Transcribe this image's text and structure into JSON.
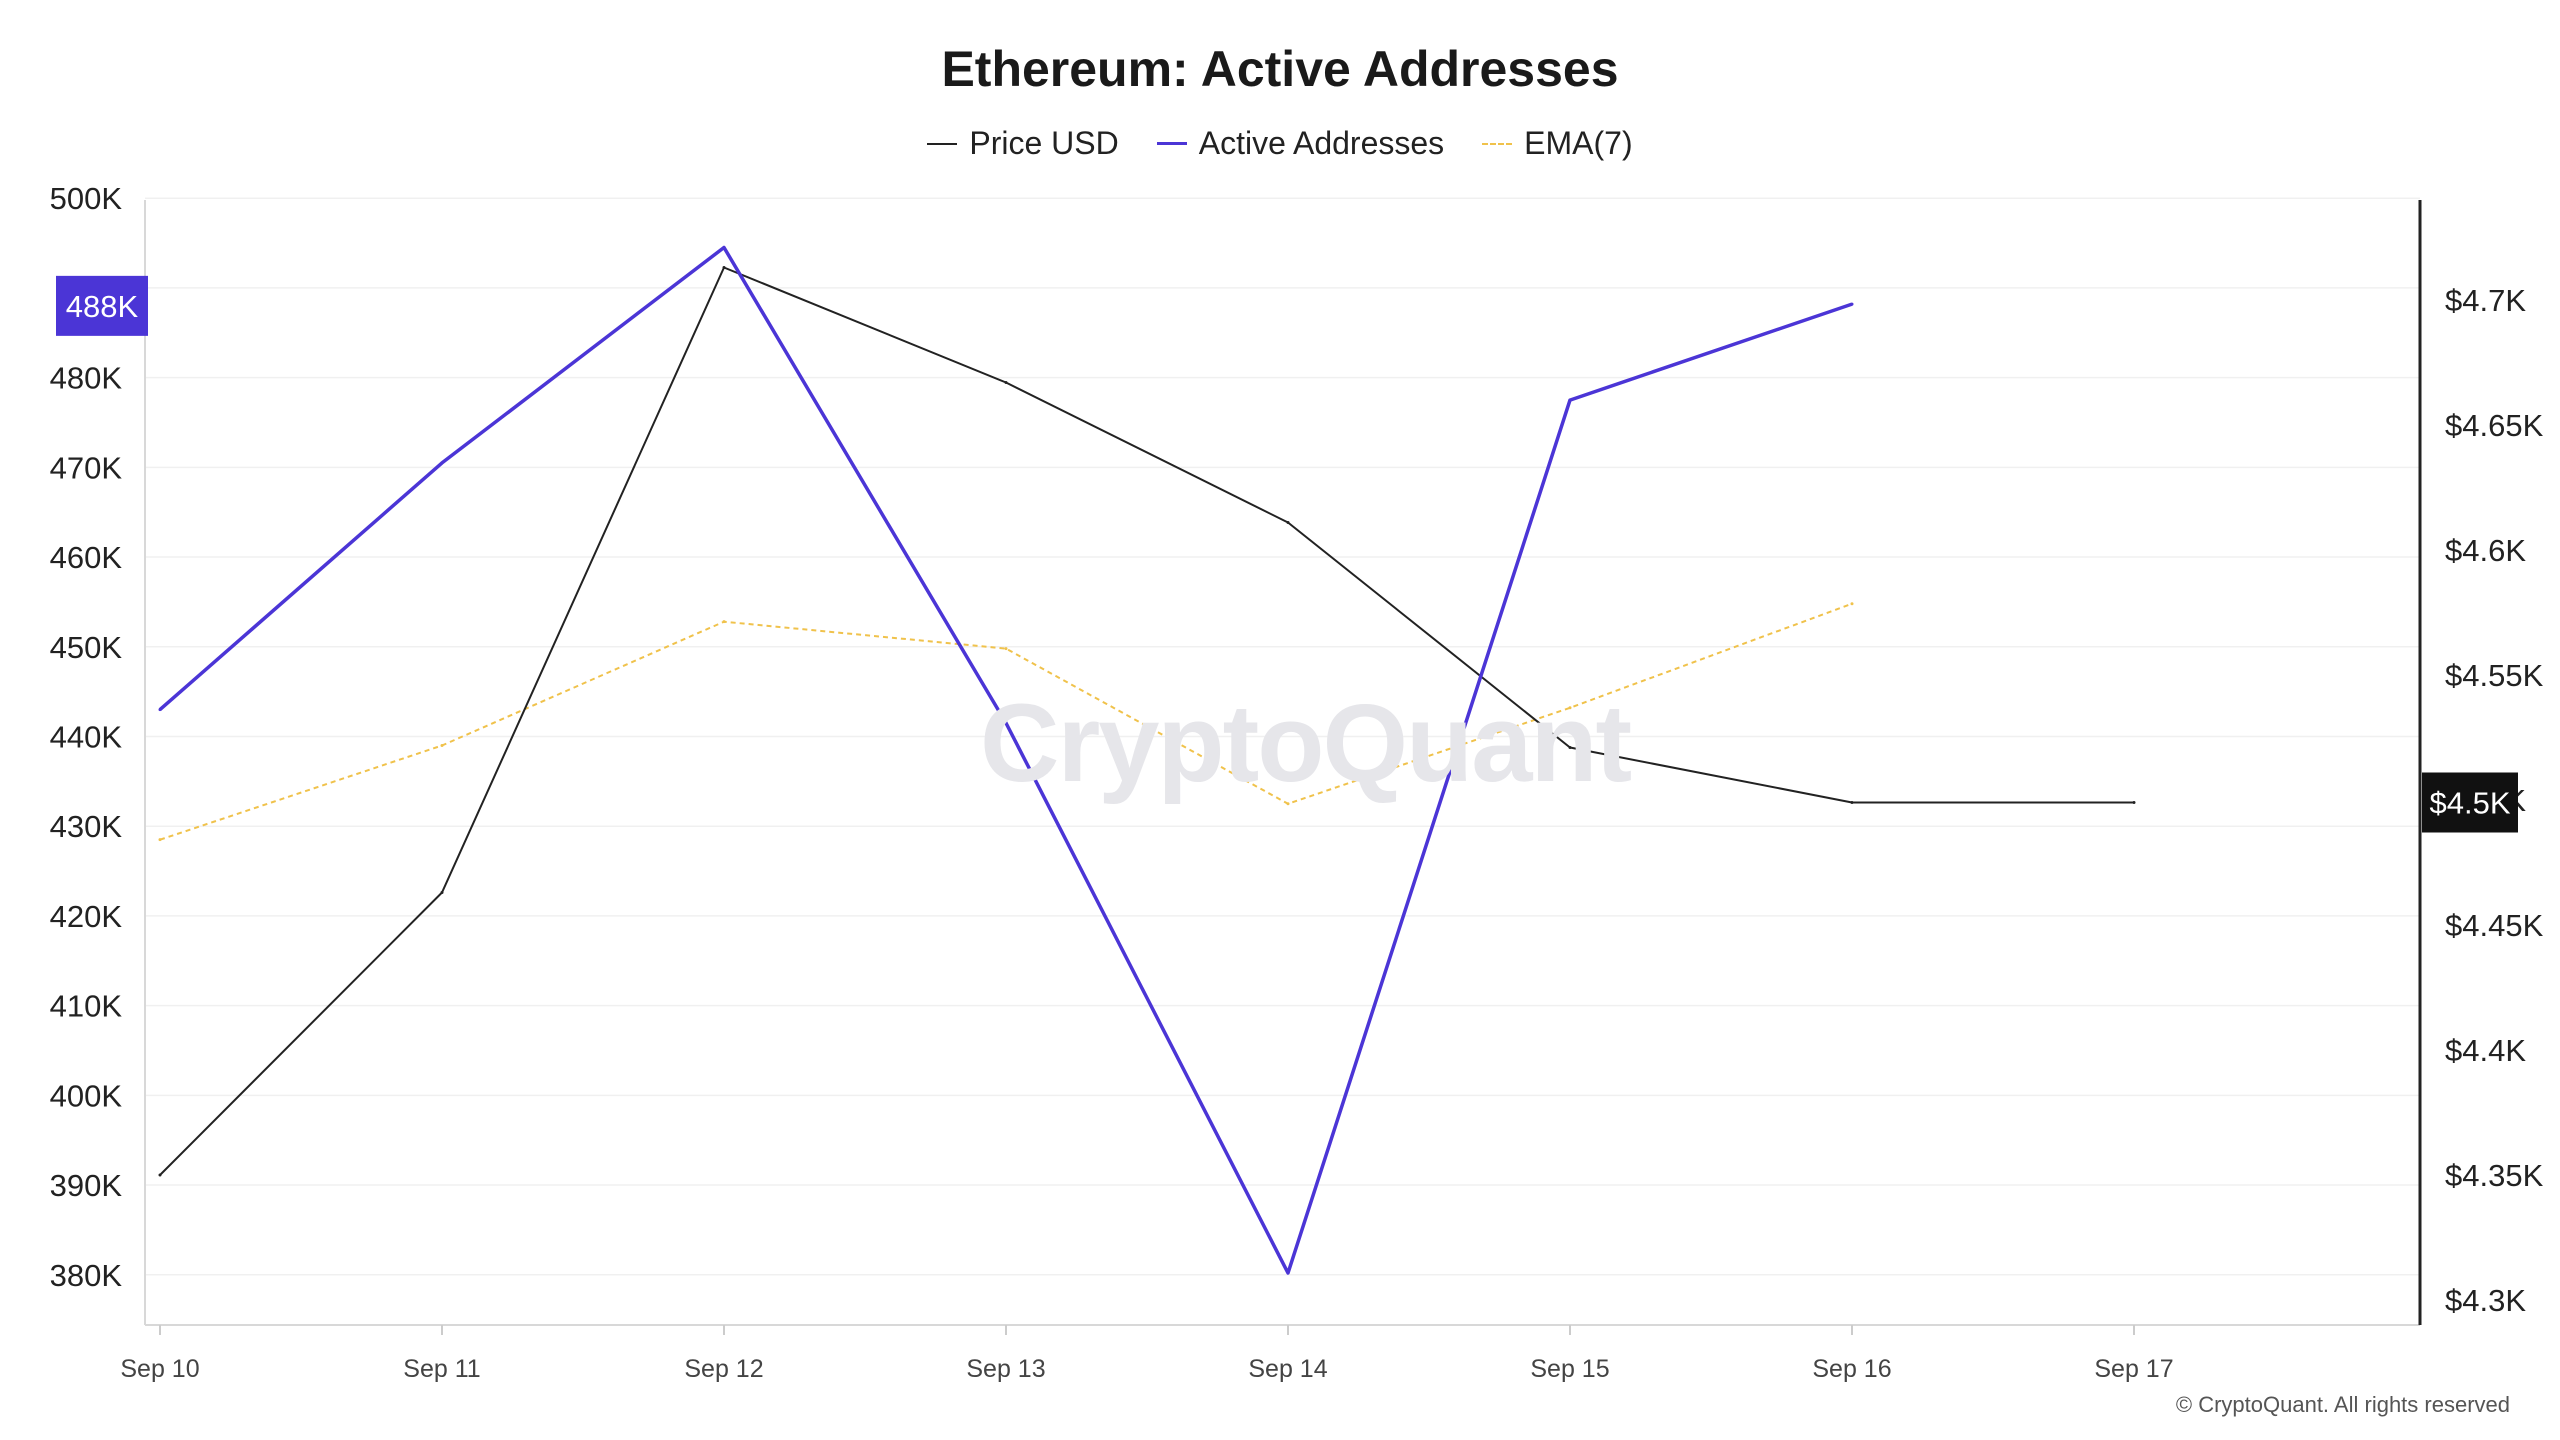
{
  "chart_data": {
    "type": "line",
    "title": "Ethereum: Active Addresses",
    "categories": [
      "Sep 10",
      "Sep 11",
      "Sep 12",
      "Sep 13",
      "Sep 14",
      "Sep 15",
      "Sep 16",
      "Sep 17"
    ],
    "series": [
      {
        "name": "Price USD",
        "axis": "right",
        "color": "#222222",
        "values": [
          4350,
          4463,
          4713,
          4667,
          4611,
          4521,
          4499,
          4499
        ]
      },
      {
        "name": "Active Addresses",
        "axis": "left",
        "color": "#4b35d6",
        "values": [
          443000,
          470500,
          494500,
          441500,
          380200,
          477500,
          488200,
          null
        ]
      },
      {
        "name": "EMA(7)",
        "axis": "left",
        "color": "#f0c24b",
        "dashed": true,
        "values": [
          428500,
          439000,
          452800,
          449800,
          432500,
          443200,
          454800,
          null
        ]
      }
    ],
    "left_axis": {
      "ylim": [
        374400,
        499800
      ],
      "ticks": [
        380000,
        390000,
        400000,
        410000,
        420000,
        430000,
        440000,
        450000,
        460000,
        470000,
        480000,
        500000
      ],
      "tick_labels": [
        "380K",
        "390K",
        "400K",
        "410K",
        "420K",
        "430K",
        "440K",
        "450K",
        "460K",
        "470K",
        "480K",
        "500K"
      ]
    },
    "right_axis": {
      "ylim": [
        4290,
        4740
      ],
      "ticks": [
        4300,
        4350,
        4400,
        4450,
        4500,
        4550,
        4600,
        4650,
        4700
      ],
      "tick_labels": [
        "$4.3K",
        "$4.35K",
        "$4.4K",
        "$4.45K",
        "$4.5K",
        "$4.55K",
        "$4.6K",
        "$4.65K",
        "$4.7K"
      ]
    },
    "left_highlight": {
      "value": 488000,
      "label": "488K",
      "color": "#4b35d6"
    },
    "right_highlight": {
      "value": 4499,
      "label": "$4.5K",
      "color": "#111111"
    },
    "grid": true,
    "legend_position": "top-center"
  },
  "watermark": "CryptoQuant",
  "footer": "© CryptoQuant. All rights reserved"
}
